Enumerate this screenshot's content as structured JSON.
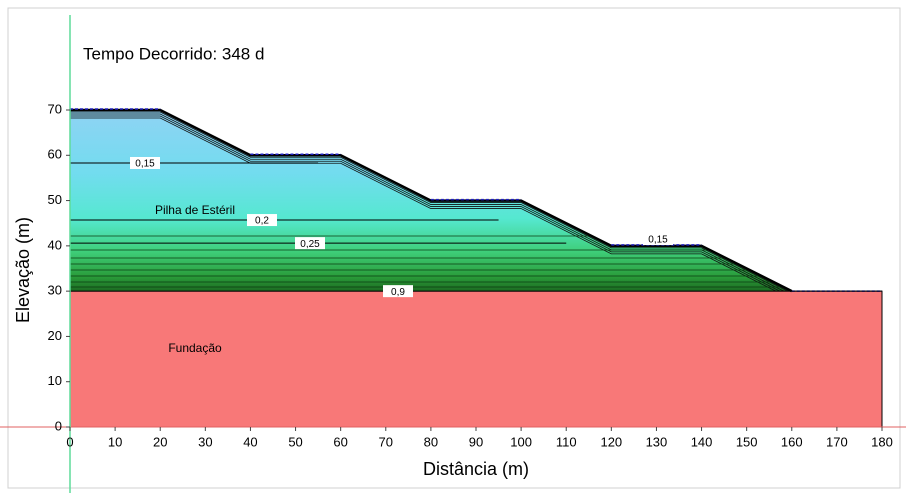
{
  "chart_data": {
    "type": "section",
    "title": "Tempo Decorrido: 348 d",
    "xlabel": "Distância (m)",
    "ylabel": "Elevação (m)",
    "xlim": [
      0,
      180
    ],
    "ylim": [
      0,
      70
    ],
    "xticks": [
      0,
      10,
      20,
      30,
      40,
      50,
      60,
      70,
      80,
      90,
      100,
      110,
      120,
      130,
      140,
      150,
      160,
      170,
      180
    ],
    "yticks": [
      0,
      10,
      20,
      30,
      40,
      50,
      60,
      70
    ],
    "regions": [
      {
        "name": "Fundação",
        "color": "#f87878",
        "x": [
          0,
          180,
          180,
          0
        ],
        "y": [
          0,
          0,
          30,
          30
        ]
      },
      {
        "name": "Pilha de Estéril",
        "color": "#8fd3f4",
        "x": [
          0,
          20,
          40,
          60,
          80,
          100,
          120,
          140,
          160
        ],
        "y": [
          70,
          70,
          60,
          60,
          50,
          50,
          40,
          40,
          30
        ]
      }
    ],
    "contours": [
      {
        "label": "0,15",
        "y": 58.3,
        "x": [
          0,
          55
        ]
      },
      {
        "label": "0,2",
        "y": 45.7,
        "x": [
          0,
          95
        ]
      },
      {
        "label": "0,25",
        "y": 40.6,
        "x": [
          0,
          110
        ]
      },
      {
        "label": "0,15",
        "y": 41.5,
        "x": [
          120,
          140
        ]
      },
      {
        "label": "0,9",
        "y": 30,
        "x": [
          0,
          180
        ]
      }
    ]
  }
}
